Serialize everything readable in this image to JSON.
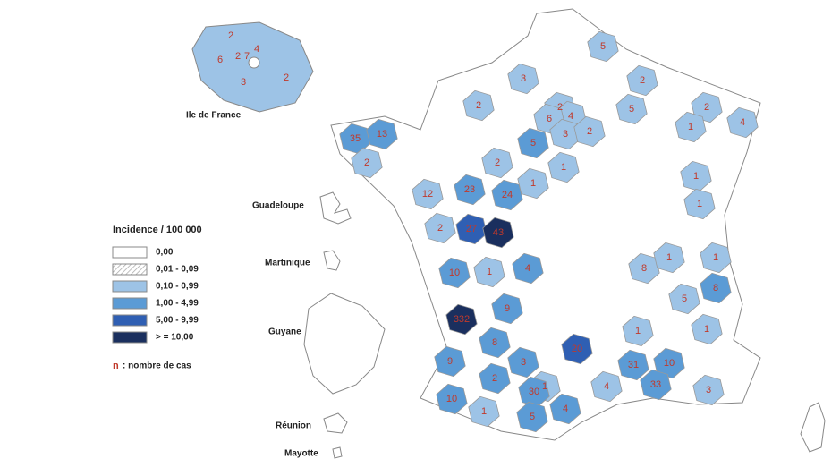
{
  "inset_label": "Ile de France",
  "territories": [
    "Guadeloupe",
    "Martinique",
    "Guyane",
    "Réunion",
    "Mayotte"
  ],
  "legend": {
    "title": "Incidence / 100 000",
    "items": [
      "0,00",
      "0,01 - 0,09",
      "0,10 - 0,99",
      "1,00 - 4,99",
      "5,00 - 9,99",
      "> = 10,00"
    ],
    "note_symbol": "n",
    "note_text": ": nombre de cas"
  },
  "counts": [
    2,
    4,
    6,
    2,
    7,
    3,
    2,
    5,
    3,
    2,
    2,
    2,
    4,
    6,
    3,
    2,
    5,
    2,
    1,
    4,
    35,
    13,
    5,
    2,
    2,
    1,
    23,
    24,
    1,
    12,
    1,
    1,
    2,
    27,
    43,
    8,
    1,
    1,
    10,
    1,
    4,
    8,
    5,
    9,
    1,
    1,
    332,
    20,
    8,
    9,
    3,
    31,
    10,
    1,
    2,
    33,
    4,
    3,
    10,
    30,
    1,
    4,
    5
  ]
}
